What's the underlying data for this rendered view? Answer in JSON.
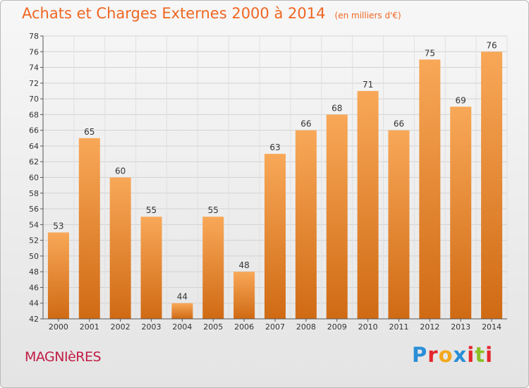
{
  "header": {
    "title": "Achats et Charges Externes 2000 à 2014",
    "subtitle": "(en milliers d'€)"
  },
  "footer": {
    "commune": "MAGNIèRES",
    "brand": {
      "text": "Proxiti",
      "letter_colors": [
        "#2a8ed8",
        "#e3262e",
        "#f2a81c",
        "#2a8ed8",
        "#e3262e",
        "#8cbf26",
        "#e3262e"
      ]
    }
  },
  "colors": {
    "title": "#ee6622",
    "bar_light": "#f8a858",
    "bar_dark": "#d06a14",
    "axis": "#555555"
  },
  "chart_data": {
    "type": "bar",
    "categories": [
      "2000",
      "2001",
      "2002",
      "2003",
      "2004",
      "2005",
      "2006",
      "2007",
      "2008",
      "2009",
      "2010",
      "2011",
      "2012",
      "2013",
      "2014"
    ],
    "values": [
      53,
      65,
      60,
      55,
      44,
      55,
      48,
      63,
      66,
      68,
      71,
      66,
      75,
      69,
      76
    ],
    "ylim": [
      42,
      78
    ],
    "yticks": [
      42,
      44,
      46,
      48,
      50,
      52,
      54,
      56,
      58,
      60,
      62,
      64,
      66,
      68,
      70,
      72,
      74,
      76,
      78
    ],
    "grid": true,
    "data_labels": true,
    "legend": "none"
  }
}
